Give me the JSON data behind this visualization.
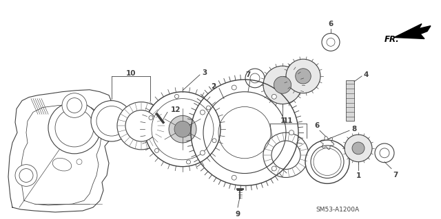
{
  "bg_color": "#ffffff",
  "line_color": "#404040",
  "fig_width": 6.4,
  "fig_height": 3.19,
  "dpi": 100,
  "title_code": "SM53-A1200A",
  "fr_label": "FR."
}
